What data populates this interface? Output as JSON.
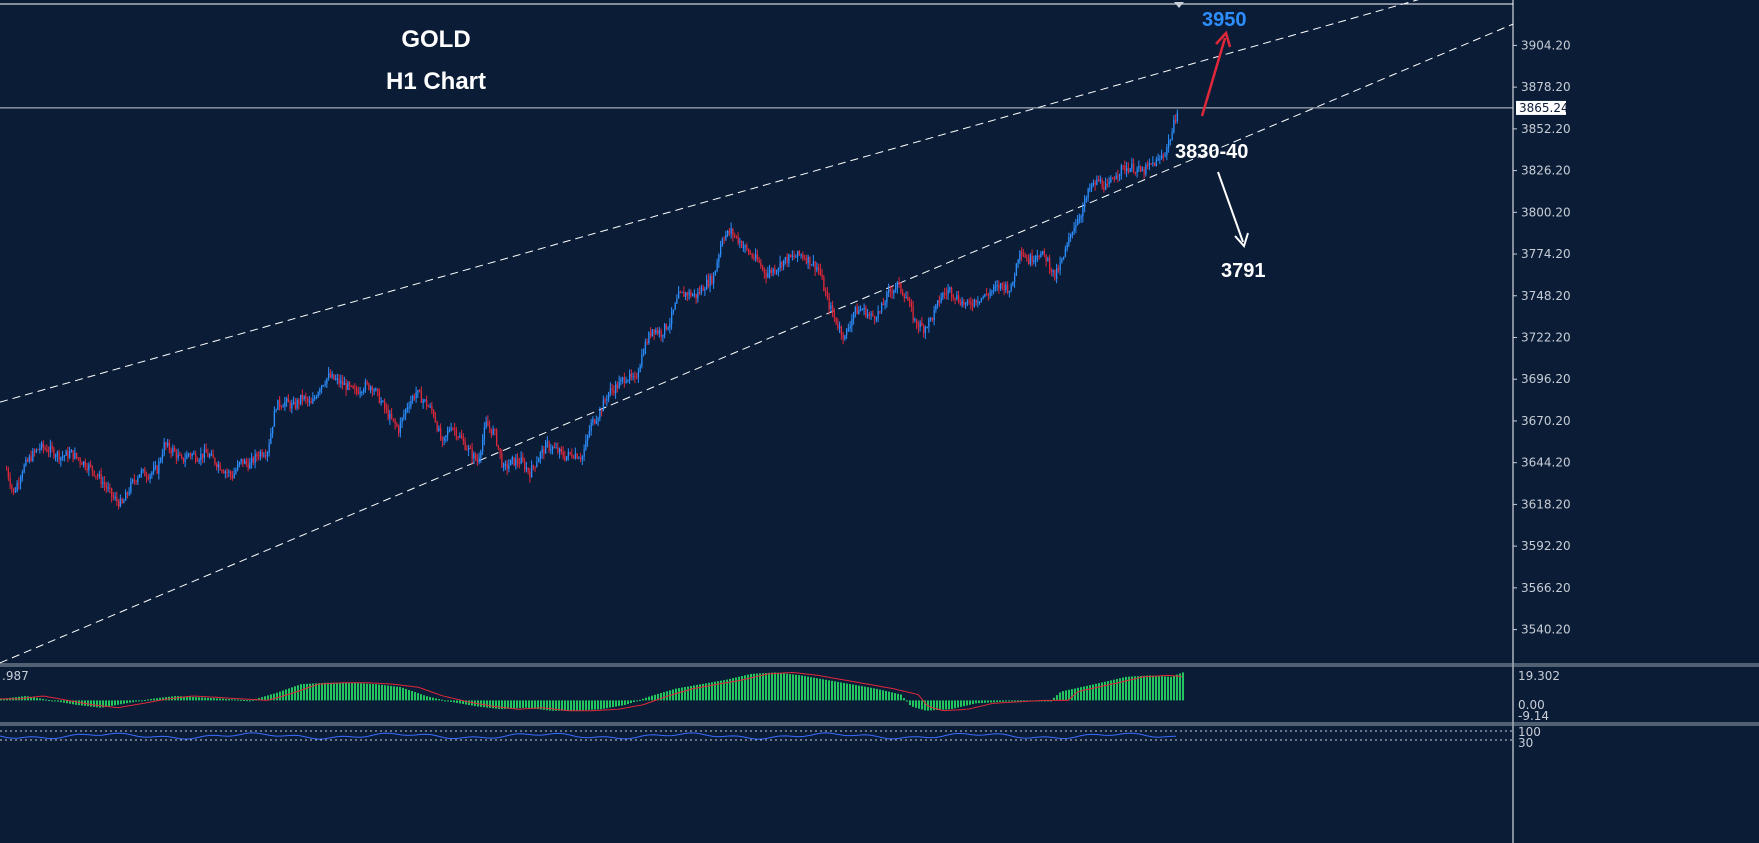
{
  "chart_data": [
    {
      "type": "candlestick",
      "title": "GOLD",
      "subtitle": "H1 Chart",
      "ylim": [
        3520,
        3930
      ],
      "y_ticks": [
        "3904.20",
        "3878.20",
        "3852.20",
        "3826.20",
        "3800.20",
        "3774.20",
        "3748.20",
        "3722.20",
        "3696.20",
        "3670.20",
        "3644.20",
        "3618.20",
        "3592.20",
        "3566.20",
        "3540.20"
      ],
      "current_price": "3865.24",
      "grid": false,
      "channel": {
        "upper": {
          "from": {
            "bar": 0,
            "price": 3683
          },
          "to": {
            "bar": 330,
            "price": 3890
          }
        },
        "lower": {
          "from": {
            "bar": 0,
            "price": 3521
          },
          "to": {
            "bar": 330,
            "price": 3829
          }
        }
      },
      "annotations": {
        "target_up": {
          "label": "3950",
          "color": "#2d8fff",
          "arrow_color": "#e0283a"
        },
        "support_zone": {
          "label": "3830-40",
          "color": "#ffffff"
        },
        "target_down": {
          "label": "3791",
          "color": "#ffffff",
          "arrow_color": "#ffffff"
        }
      },
      "colors": {
        "up": "#2d8fff",
        "down": "#e0283a",
        "background": "#0a1c36"
      },
      "candles_path": [
        [
          0,
          3640
        ],
        [
          4,
          3625
        ],
        [
          9,
          3640
        ],
        [
          14,
          3648
        ],
        [
          19,
          3654
        ],
        [
          25,
          3652
        ],
        [
          31,
          3648
        ],
        [
          37,
          3650
        ],
        [
          43,
          3645
        ],
        [
          49,
          3640
        ],
        [
          55,
          3632
        ],
        [
          61,
          3622
        ],
        [
          66,
          3618
        ],
        [
          71,
          3630
        ],
        [
          76,
          3638
        ],
        [
          81,
          3637
        ],
        [
          86,
          3640
        ],
        [
          90,
          3655
        ],
        [
          95,
          3652
        ],
        [
          100,
          3645
        ],
        [
          104,
          3650
        ],
        [
          109,
          3648
        ],
        [
          114,
          3650
        ],
        [
          119,
          3645
        ],
        [
          124,
          3640
        ],
        [
          129,
          3636
        ],
        [
          134,
          3645
        ],
        [
          139,
          3643
        ],
        [
          144,
          3650
        ],
        [
          149,
          3652
        ],
        [
          154,
          3680
        ],
        [
          159,
          3682
        ],
        [
          164,
          3679
        ],
        [
          169,
          3685
        ],
        [
          174,
          3680
        ],
        [
          179,
          3692
        ],
        [
          184,
          3698
        ],
        [
          189,
          3695
        ],
        [
          194,
          3692
        ],
        [
          199,
          3688
        ],
        [
          204,
          3692
        ],
        [
          209,
          3692
        ],
        [
          214,
          3682
        ],
        [
          219,
          3672
        ],
        [
          224,
          3665
        ],
        [
          229,
          3680
        ],
        [
          234,
          3688
        ],
        [
          239,
          3682
        ],
        [
          244,
          3675
        ],
        [
          249,
          3655
        ],
        [
          254,
          3668
        ],
        [
          259,
          3660
        ],
        [
          264,
          3652
        ],
        [
          269,
          3645
        ],
        [
          274,
          3668
        ],
        [
          279,
          3662
        ],
        [
          284,
          3640
        ],
        [
          289,
          3645
        ],
        [
          294,
          3645
        ],
        [
          299,
          3638
        ],
        [
          304,
          3648
        ],
        [
          309,
          3655
        ],
        [
          314,
          3652
        ],
        [
          319,
          3648
        ],
        [
          324,
          3650
        ],
        [
          329,
          3648
        ],
        [
          334,
          3668
        ],
        [
          339,
          3676
        ],
        [
          344,
          3688
        ],
        [
          349,
          3692
        ],
        [
          354,
          3698
        ],
        [
          359,
          3695
        ],
        [
          364,
          3715
        ],
        [
          369,
          3728
        ],
        [
          374,
          3725
        ],
        [
          379,
          3732
        ],
        [
          384,
          3748
        ],
        [
          389,
          3750
        ],
        [
          394,
          3748
        ],
        [
          399,
          3755
        ],
        [
          404,
          3760
        ],
        [
          409,
          3785
        ],
        [
          414,
          3788
        ],
        [
          419,
          3782
        ],
        [
          424,
          3775
        ],
        [
          429,
          3770
        ],
        [
          434,
          3762
        ],
        [
          439,
          3765
        ],
        [
          444,
          3770
        ],
        [
          449,
          3772
        ],
        [
          454,
          3774
        ],
        [
          459,
          3770
        ],
        [
          464,
          3765
        ],
        [
          469,
          3745
        ],
        [
          474,
          3732
        ],
        [
          479,
          3722
        ],
        [
          484,
          3738
        ],
        [
          489,
          3740
        ],
        [
          494,
          3735
        ],
        [
          499,
          3738
        ],
        [
          504,
          3750
        ],
        [
          509,
          3755
        ],
        [
          514,
          3748
        ],
        [
          519,
          3732
        ],
        [
          524,
          3728
        ],
        [
          529,
          3735
        ],
        [
          534,
          3748
        ],
        [
          539,
          3752
        ],
        [
          544,
          3746
        ],
        [
          549,
          3742
        ],
        [
          554,
          3746
        ],
        [
          559,
          3748
        ],
        [
          564,
          3752
        ],
        [
          569,
          3755
        ],
        [
          574,
          3752
        ],
        [
          579,
          3778
        ],
        [
          584,
          3770
        ],
        [
          589,
          3775
        ],
        [
          594,
          3772
        ],
        [
          599,
          3760
        ],
        [
          604,
          3772
        ],
        [
          609,
          3790
        ],
        [
          614,
          3800
        ],
        [
          619,
          3815
        ],
        [
          624,
          3820
        ],
        [
          629,
          3815
        ],
        [
          634,
          3825
        ],
        [
          639,
          3828
        ],
        [
          644,
          3828
        ],
        [
          649,
          3825
        ],
        [
          654,
          3830
        ],
        [
          658,
          3832
        ],
        [
          662,
          3838
        ],
        [
          666,
          3850
        ],
        [
          669,
          3865
        ]
      ],
      "oscillator": {
        "label": ".987",
        "ticks": [
          "19.302",
          "0.00",
          "-9.14"
        ],
        "ylim": [
          -14,
          22
        ],
        "path": [
          [
            0,
            1
          ],
          [
            25,
            3
          ],
          [
            50,
            0
          ],
          [
            75,
            -3
          ],
          [
            100,
            -5
          ],
          [
            125,
            -2
          ],
          [
            150,
            1
          ],
          [
            175,
            3
          ],
          [
            200,
            2
          ],
          [
            225,
            1
          ],
          [
            250,
            0
          ],
          [
            275,
            5
          ],
          [
            300,
            11
          ],
          [
            325,
            12
          ],
          [
            350,
            12
          ],
          [
            375,
            11
          ],
          [
            400,
            9
          ],
          [
            425,
            3
          ],
          [
            450,
            -1
          ],
          [
            475,
            -4
          ],
          [
            500,
            -6
          ],
          [
            525,
            -5
          ],
          [
            550,
            -7
          ],
          [
            575,
            -7
          ],
          [
            600,
            -6
          ],
          [
            625,
            -3
          ],
          [
            650,
            3
          ],
          [
            675,
            8
          ],
          [
            700,
            11
          ],
          [
            725,
            14
          ],
          [
            750,
            18
          ],
          [
            775,
            19
          ],
          [
            800,
            17
          ],
          [
            825,
            14
          ],
          [
            850,
            11
          ],
          [
            875,
            8
          ],
          [
            900,
            4
          ],
          [
            910,
            -4
          ],
          [
            925,
            -7
          ],
          [
            950,
            -6
          ],
          [
            975,
            -2
          ],
          [
            1000,
            -1
          ],
          [
            1025,
            0
          ],
          [
            1050,
            0
          ],
          [
            1060,
            6
          ],
          [
            1080,
            9
          ],
          [
            1100,
            12
          ],
          [
            1125,
            16
          ],
          [
            1150,
            17
          ],
          [
            1170,
            16
          ],
          [
            1182,
            19
          ]
        ]
      },
      "rsi": {
        "ticks": [
          "100",
          "30"
        ]
      }
    }
  ]
}
